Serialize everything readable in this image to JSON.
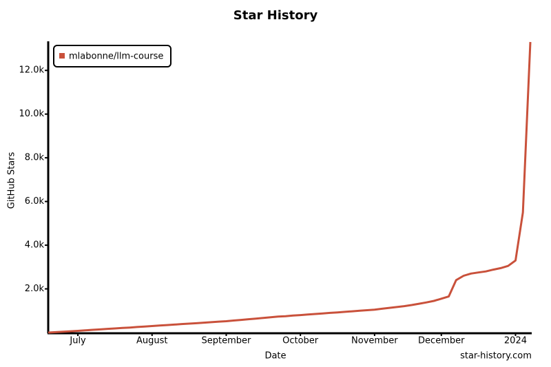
{
  "chart_data": {
    "type": "line",
    "title": "Star History",
    "x_label": "Date",
    "y_label": "GitHub Stars",
    "categories": [
      null,
      null,
      null,
      null,
      "July",
      null,
      null,
      null,
      null,
      null,
      null,
      null,
      null,
      null,
      "August",
      null,
      null,
      null,
      null,
      null,
      null,
      null,
      null,
      null,
      "September",
      null,
      null,
      null,
      null,
      null,
      null,
      null,
      null,
      null,
      "October",
      null,
      null,
      null,
      null,
      null,
      null,
      null,
      null,
      null,
      "November",
      null,
      null,
      null,
      null,
      null,
      null,
      null,
      null,
      "December",
      null,
      null,
      null,
      null,
      null,
      null,
      null,
      null,
      null,
      "2024",
      null,
      null
    ],
    "series": [
      {
        "name": "mlabonne/llm-course",
        "color": "#c9513b",
        "values": [
          0,
          20,
          40,
          60,
          80,
          100,
          125,
          145,
          170,
          190,
          210,
          230,
          255,
          275,
          300,
          320,
          345,
          365,
          390,
          410,
          430,
          455,
          475,
          500,
          520,
          550,
          580,
          610,
          640,
          670,
          700,
          730,
          750,
          780,
          800,
          825,
          850,
          875,
          900,
          925,
          950,
          975,
          1000,
          1025,
          1050,
          1090,
          1130,
          1170,
          1210,
          1260,
          1320,
          1380,
          1450,
          1550,
          1650,
          2400,
          2600,
          2700,
          2750,
          2800,
          2880,
          2950,
          3050,
          3300,
          5500,
          13300
        ]
      }
    ],
    "ylim": [
      0,
      13300
    ],
    "yticks": [
      {
        "value": 2000,
        "label": "2.0k"
      },
      {
        "value": 4000,
        "label": "4.0k"
      },
      {
        "value": 6000,
        "label": "6.0k"
      },
      {
        "value": 8000,
        "label": "8.0k"
      },
      {
        "value": 10000,
        "label": "10.0k"
      },
      {
        "value": 12000,
        "label": "12.0k"
      }
    ],
    "legend": "top-left",
    "watermark": "star-history.com"
  }
}
